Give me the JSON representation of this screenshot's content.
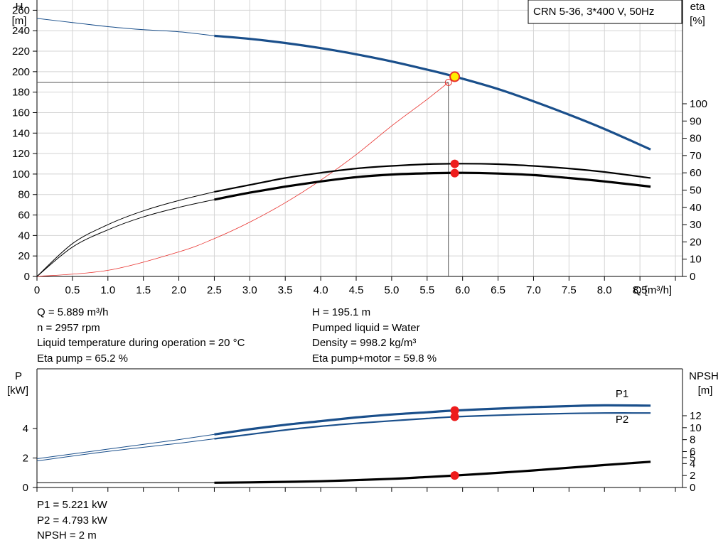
{
  "chart_data": [
    {
      "type": "line",
      "legend_box": "CRN 5-36, 3*400 V, 50Hz",
      "y_left": {
        "label": "H",
        "unit": "[m]",
        "lim": [
          0,
          270
        ],
        "ticks": [
          0,
          20,
          40,
          60,
          80,
          100,
          120,
          140,
          160,
          180,
          200,
          220,
          240,
          260
        ]
      },
      "y_right": {
        "label": "eta",
        "unit": "[%]",
        "lim": [
          0,
          100
        ],
        "ticks": [
          0,
          10,
          20,
          30,
          40,
          50,
          60,
          70,
          80,
          90,
          100
        ]
      },
      "x": {
        "label": "Q [m³/h]",
        "lim": [
          0,
          9.1
        ],
        "ticks": [
          "0",
          "0.5",
          "1.0",
          "1.5",
          "2.0",
          "2.5",
          "3.0",
          "3.5",
          "4.0",
          "4.5",
          "5.0",
          "5.5",
          "6.0",
          "6.5",
          "7.0",
          "7.5",
          "8.0",
          "8.5"
        ]
      },
      "duty_point": {
        "q": 5.889,
        "h": 195.1
      },
      "reference_point": {
        "q": 5.8,
        "h": 189.5
      },
      "series": [
        {
          "id": "head",
          "axis": "left",
          "color": "#1a4f8b",
          "x": [
            0,
            0.5,
            1.0,
            1.5,
            2.0,
            2.5,
            3.0,
            3.5,
            4.0,
            4.5,
            5.0,
            5.5,
            5.9,
            6.5,
            7.0,
            7.5,
            8.0,
            8.65
          ],
          "y": [
            252,
            248,
            244,
            241,
            239,
            235,
            232,
            228,
            223,
            217,
            210,
            202,
            195,
            183,
            171,
            158,
            144,
            124
          ]
        },
        {
          "id": "eta-pump",
          "axis": "right",
          "color": "#000000",
          "x": [
            0,
            0.5,
            1.0,
            1.5,
            2.0,
            2.5,
            3.0,
            3.5,
            4.0,
            4.5,
            5.0,
            5.5,
            6.0,
            6.5,
            7.0,
            7.5,
            8.0,
            8.65
          ],
          "y": [
            0,
            19,
            30,
            38,
            44,
            49,
            53,
            57,
            60,
            62.5,
            64,
            65,
            65.3,
            65,
            64,
            62.5,
            60.5,
            57
          ]
        },
        {
          "id": "eta-total",
          "axis": "right",
          "color": "#000000",
          "x": [
            0,
            0.5,
            1.0,
            1.5,
            2.0,
            2.5,
            3.0,
            3.5,
            4.0,
            4.5,
            5.0,
            5.5,
            6.0,
            6.5,
            7.0,
            7.5,
            8.0,
            8.65
          ],
          "y": [
            0,
            17,
            27,
            34.5,
            40,
            44.5,
            48.5,
            52,
            55,
            57.5,
            59,
            59.7,
            60,
            59.6,
            58.7,
            57,
            55,
            52
          ]
        },
        {
          "id": "system",
          "axis": "left",
          "color": "#e8302c",
          "x": [
            0,
            1.0,
            2.0,
            2.5,
            3.0,
            3.5,
            4.0,
            4.5,
            5.0,
            5.5,
            5.8
          ],
          "y": [
            0,
            6,
            24,
            37,
            53,
            72,
            94,
            119,
            147,
            173,
            189.5
          ]
        }
      ],
      "markers_right": [
        {
          "q": 5.889,
          "eta": 65.2
        },
        {
          "q": 5.889,
          "eta": 59.8
        }
      ]
    },
    {
      "type": "line",
      "y_left": {
        "label": "P",
        "unit": "[kW]",
        "lim": [
          0,
          7
        ],
        "ticks": [
          0,
          2,
          4
        ]
      },
      "y_right": {
        "label": "NPSH",
        "unit": "[m]",
        "lim": [
          0,
          20
        ],
        "ticks": [
          0,
          2,
          4,
          5,
          6,
          8,
          10,
          12
        ]
      },
      "x": {
        "lim": [
          0,
          9.1
        ]
      },
      "series": [
        {
          "id": "P1",
          "name": "P1",
          "axis": "left",
          "color": "#1a4f8b",
          "x": [
            0,
            1.0,
            2.0,
            2.5,
            3.0,
            3.5,
            4.0,
            4.5,
            5.0,
            5.5,
            5.889,
            6.5,
            7.0,
            7.5,
            8.0,
            8.65
          ],
          "y": [
            1.95,
            2.6,
            3.25,
            3.6,
            3.95,
            4.25,
            4.5,
            4.75,
            4.95,
            5.1,
            5.221,
            5.35,
            5.45,
            5.52,
            5.57,
            5.55
          ]
        },
        {
          "id": "P2",
          "name": "P2",
          "axis": "left",
          "color": "#1a4f8b",
          "x": [
            0,
            1.0,
            2.0,
            2.5,
            3.0,
            3.5,
            4.0,
            4.5,
            5.0,
            5.5,
            5.889,
            6.5,
            7.0,
            7.5,
            8.0,
            8.65
          ],
          "y": [
            1.8,
            2.45,
            3.0,
            3.3,
            3.6,
            3.9,
            4.15,
            4.35,
            4.52,
            4.68,
            4.793,
            4.9,
            4.97,
            5.02,
            5.05,
            5.05
          ]
        },
        {
          "id": "NPSH",
          "axis": "right",
          "color": "#000000",
          "x": [
            0,
            1.0,
            2.0,
            2.5,
            3.0,
            4.0,
            5.0,
            5.5,
            5.889,
            6.5,
            7.0,
            7.5,
            8.0,
            8.65
          ],
          "y": [
            0.8,
            0.8,
            0.8,
            0.8,
            0.85,
            1.05,
            1.45,
            1.75,
            2.0,
            2.45,
            2.85,
            3.3,
            3.75,
            4.3
          ]
        }
      ],
      "markers": [
        {
          "q": 5.889,
          "p": 5.221
        },
        {
          "q": 5.889,
          "p": 4.793
        },
        {
          "q": 5.889,
          "npsh": 2.0
        }
      ]
    }
  ],
  "info_top_left": [
    "Q = 5.889 m³/h",
    "n = 2957 rpm",
    "Liquid temperature during operation = 20 °C",
    "Eta pump = 65.2 %"
  ],
  "info_top_right": [
    "H = 195.1 m",
    "Pumped liquid = Water",
    "Density = 998.2 kg/m³",
    "Eta pump+motor = 59.8 %"
  ],
  "info_bottom": [
    "P1 = 5.221 kW",
    "P2 = 4.793 kW",
    "NPSH = 2 m"
  ]
}
